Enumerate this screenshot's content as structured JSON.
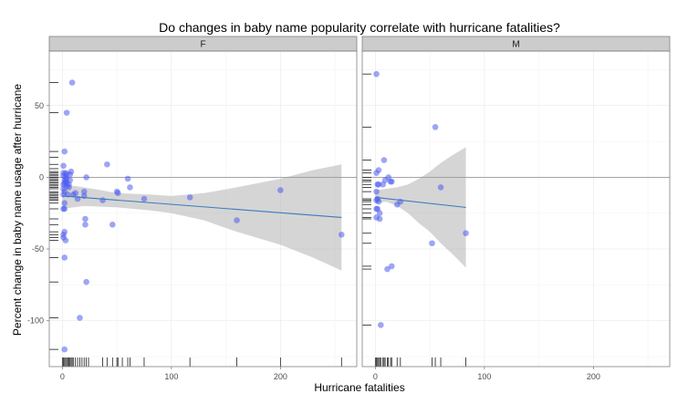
{
  "chart_data": {
    "type": "scatter",
    "title": "Do changes in baby name popularity correlate with hurricane fatalities?",
    "xlabel": "Hurricane fatalities",
    "ylabel": "Percent change in baby name usage after hurricane",
    "xlim": [
      -12,
      270
    ],
    "ylim": [
      -132,
      88
    ],
    "x_ticks": [
      0,
      100,
      200
    ],
    "y_ticks": [
      50,
      0,
      -50,
      -100
    ],
    "hline": 0,
    "panels": [
      {
        "name": "F",
        "points": [
          [
            1,
            -12
          ],
          [
            1,
            -22
          ],
          [
            1,
            -40
          ],
          [
            1,
            -42
          ],
          [
            1,
            -5
          ],
          [
            1,
            3
          ],
          [
            1,
            1
          ],
          [
            1,
            -8
          ],
          [
            1,
            8
          ],
          [
            2,
            -2
          ],
          [
            2,
            -4
          ],
          [
            2,
            -10
          ],
          [
            2,
            -18
          ],
          [
            2,
            -22
          ],
          [
            2,
            18
          ],
          [
            2,
            -120
          ],
          [
            2,
            -56
          ],
          [
            2,
            -38
          ],
          [
            3,
            -44
          ],
          [
            3,
            -3
          ],
          [
            3,
            0
          ],
          [
            3,
            3
          ],
          [
            4,
            2
          ],
          [
            4,
            -6
          ],
          [
            4,
            -4
          ],
          [
            4,
            -1
          ],
          [
            4,
            45
          ],
          [
            5,
            -12
          ],
          [
            6,
            -5
          ],
          [
            6,
            -7
          ],
          [
            7,
            -2
          ],
          [
            7,
            2
          ],
          [
            8,
            4
          ],
          [
            9,
            66
          ],
          [
            10,
            -12
          ],
          [
            12,
            -11
          ],
          [
            14,
            -15
          ],
          [
            16,
            -98
          ],
          [
            20,
            -10
          ],
          [
            20,
            -13
          ],
          [
            21,
            -29
          ],
          [
            21,
            -33
          ],
          [
            22,
            -73
          ],
          [
            22,
            0
          ],
          [
            37,
            -16
          ],
          [
            41,
            9
          ],
          [
            46,
            -33
          ],
          [
            50,
            -10
          ],
          [
            51,
            -11
          ],
          [
            60,
            -1
          ],
          [
            62,
            -7
          ],
          [
            75,
            -15
          ],
          [
            117,
            -14
          ],
          [
            160,
            -30
          ],
          [
            200,
            -9
          ],
          [
            256,
            -40
          ]
        ],
        "fit": {
          "x_start": 0,
          "y_start": -13,
          "x_end": 256,
          "y_end": -28
        },
        "ribbon": [
          [
            0,
            -22,
            -5
          ],
          [
            20,
            -20,
            -7
          ],
          [
            50,
            -21,
            -11
          ],
          [
            80,
            -23,
            -12
          ],
          [
            100,
            -25,
            -13
          ],
          [
            130,
            -30,
            -11
          ],
          [
            160,
            -38,
            -7
          ],
          [
            200,
            -47,
            -1
          ],
          [
            230,
            -56,
            5
          ],
          [
            256,
            -65,
            9
          ]
        ],
        "rug_x": [
          0,
          1,
          2,
          3,
          4,
          5,
          6,
          7,
          8,
          9,
          10,
          12,
          14,
          16,
          18,
          20,
          22,
          24,
          37,
          41,
          46,
          50,
          51,
          55,
          60,
          62,
          75,
          117,
          160,
          200,
          256
        ],
        "rug_y": [
          66,
          45,
          18,
          14,
          9,
          6,
          4,
          3,
          2,
          1,
          0,
          -1,
          -2,
          -3,
          -4,
          -5,
          -6,
          -7,
          -8,
          -10,
          -11,
          -12,
          -13,
          -14,
          -15,
          -16,
          -18,
          -22,
          -29,
          -33,
          -38,
          -40,
          -42,
          -44,
          -56,
          -73,
          -98,
          -120
        ]
      },
      {
        "name": "M",
        "points": [
          [
            1,
            72
          ],
          [
            3,
            5
          ],
          [
            1,
            3
          ],
          [
            2,
            -5
          ],
          [
            3,
            -5
          ],
          [
            1,
            -10
          ],
          [
            2,
            -15
          ],
          [
            1,
            -16
          ],
          [
            3,
            -17
          ],
          [
            1,
            -22
          ],
          [
            2,
            -22
          ],
          [
            4,
            -25
          ],
          [
            1,
            -28
          ],
          [
            4,
            -29
          ],
          [
            5,
            -103
          ],
          [
            7,
            -5
          ],
          [
            8,
            12
          ],
          [
            9,
            -2
          ],
          [
            11,
            -64
          ],
          [
            12,
            0
          ],
          [
            14,
            -3
          ],
          [
            15,
            -3
          ],
          [
            15,
            -62
          ],
          [
            20,
            -19
          ],
          [
            23,
            -17
          ],
          [
            52,
            -46
          ],
          [
            55,
            35
          ],
          [
            60,
            -7
          ],
          [
            83,
            -39
          ]
        ],
        "fit": {
          "x_start": 0,
          "y_start": -14,
          "x_end": 83,
          "y_end": -21
        },
        "ribbon": [
          [
            0,
            -18,
            -9
          ],
          [
            10,
            -17,
            -8
          ],
          [
            20,
            -20,
            -7
          ],
          [
            30,
            -25,
            -5
          ],
          [
            40,
            -32,
            -1
          ],
          [
            50,
            -38,
            4
          ],
          [
            60,
            -46,
            10
          ],
          [
            70,
            -53,
            15
          ],
          [
            83,
            -63,
            21
          ]
        ],
        "rug_x": [
          0,
          1,
          2,
          3,
          4,
          5,
          7,
          8,
          9,
          11,
          12,
          14,
          15,
          20,
          23,
          52,
          55,
          60,
          83
        ],
        "rug_y": [
          72,
          35,
          12,
          5,
          3,
          0,
          -2,
          -3,
          -5,
          -7,
          -10,
          -15,
          -16,
          -17,
          -19,
          -22,
          -25,
          -28,
          -29,
          -39,
          -46,
          -62,
          -64,
          -103
        ]
      }
    ]
  }
}
